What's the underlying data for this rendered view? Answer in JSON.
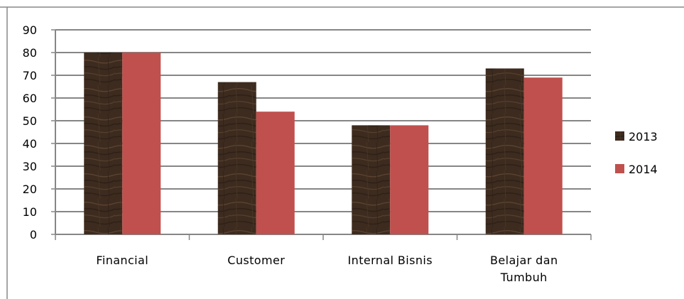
{
  "chart_data": {
    "type": "bar",
    "categories": [
      [
        "Financial"
      ],
      [
        "Customer"
      ],
      [
        "Internal Bisnis"
      ],
      [
        "Belajar dan",
        "Tumbuh"
      ]
    ],
    "series": [
      {
        "name": "2013",
        "values": [
          80,
          67,
          48,
          73
        ],
        "color": "#3d2b1f"
      },
      {
        "name": "2014",
        "values": [
          80,
          54,
          48,
          69
        ],
        "color": "#c0504d"
      }
    ],
    "ylim": [
      0,
      90
    ],
    "yticks": [
      0,
      10,
      20,
      30,
      40,
      50,
      60,
      70,
      80,
      90
    ],
    "grid": true,
    "legend": "right",
    "colors": {
      "gridline": "#868686",
      "axis": "#868686",
      "frame": "#888888",
      "wood_light": "#5a4330",
      "wood_dark": "#2e2117"
    }
  }
}
